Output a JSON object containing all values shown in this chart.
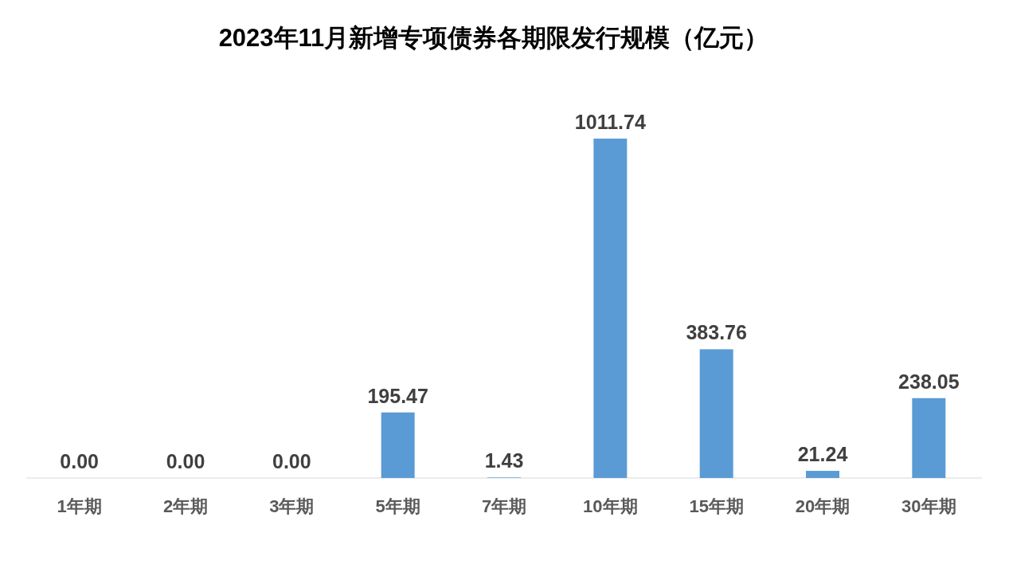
{
  "chart_data": {
    "type": "bar",
    "title": "2023年11月新增专项债券各期限发行规模（亿元）",
    "categories": [
      "1年期",
      "2年期",
      "3年期",
      "5年期",
      "7年期",
      "10年期",
      "15年期",
      "20年期",
      "30年期"
    ],
    "values": [
      0,
      0,
      0,
      195.47,
      1.43,
      1011.74,
      383.76,
      21.24,
      238.05
    ],
    "value_labels": [
      "0.00",
      "0.00",
      "0.00",
      "195.47",
      "1.43",
      "1011.74",
      "383.76",
      "21.24",
      "238.05"
    ],
    "color": "#5b9bd5"
  }
}
